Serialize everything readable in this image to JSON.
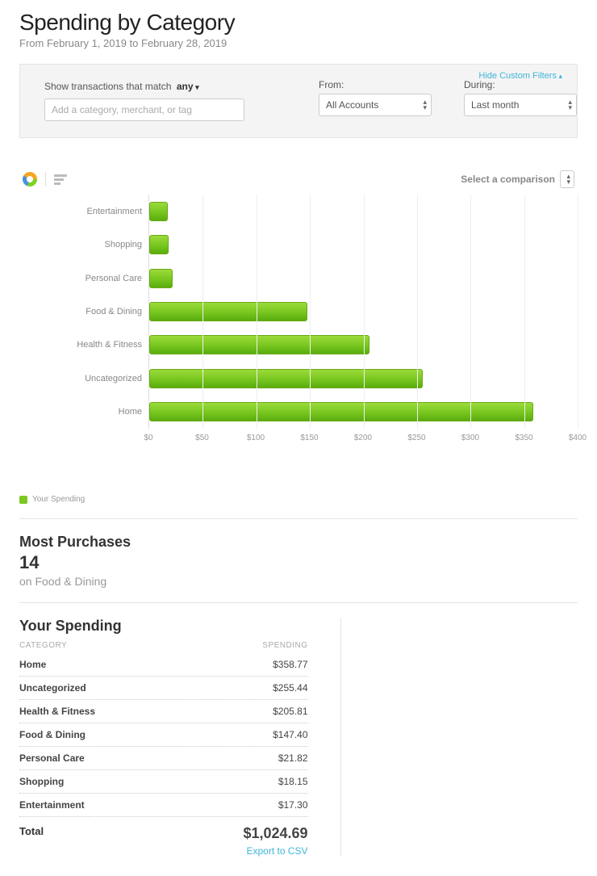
{
  "header": {
    "title": "Spending by Category",
    "date_range": "From February 1, 2019 to February 28, 2019"
  },
  "filters": {
    "hide_label": "Hide Custom Filters",
    "match_prefix": "Show transactions that match",
    "match_mode": "any",
    "tag_placeholder": "Add a category, merchant, or tag",
    "from_label": "From:",
    "from_value": "All Accounts",
    "during_label": "During:",
    "during_value": "Last month"
  },
  "chart": {
    "compare_label": "Select a comparison",
    "type": "horizontal-bar",
    "x_max": 400,
    "x_tick_step": 50,
    "x_ticks": [
      "$0",
      "$50",
      "$100",
      "$150",
      "$200",
      "$250",
      "$300",
      "$350",
      "$400"
    ],
    "bar_gradient": [
      "#9bdb3a",
      "#7ac821",
      "#5aad0e"
    ],
    "bar_border": "#6aa818",
    "grid_color": "#eeeeee",
    "categories": [
      {
        "label": "Entertainment",
        "value": 17.3
      },
      {
        "label": "Shopping",
        "value": 18.15
      },
      {
        "label": "Personal Care",
        "value": 21.82
      },
      {
        "label": "Food & Dining",
        "value": 147.4
      },
      {
        "label": "Health & Fitness",
        "value": 205.81
      },
      {
        "label": "Uncategorized",
        "value": 255.44
      },
      {
        "label": "Home",
        "value": 358.77
      }
    ],
    "legend": "Your Spending"
  },
  "most_purchases": {
    "title": "Most Purchases",
    "count": "14",
    "on_label": "on Food & Dining"
  },
  "spending_table": {
    "title": "Your Spending",
    "col_category": "CATEGORY",
    "col_spending": "SPENDING",
    "rows": [
      {
        "cat": "Home",
        "val": "$358.77"
      },
      {
        "cat": "Uncategorized",
        "val": "$255.44"
      },
      {
        "cat": "Health & Fitness",
        "val": "$205.81"
      },
      {
        "cat": "Food & Dining",
        "val": "$147.40"
      },
      {
        "cat": "Personal Care",
        "val": "$21.82"
      },
      {
        "cat": "Shopping",
        "val": "$18.15"
      },
      {
        "cat": "Entertainment",
        "val": "$17.30"
      }
    ],
    "total_label": "Total",
    "total_value": "$1,024.69",
    "export_label": "Export to CSV"
  }
}
